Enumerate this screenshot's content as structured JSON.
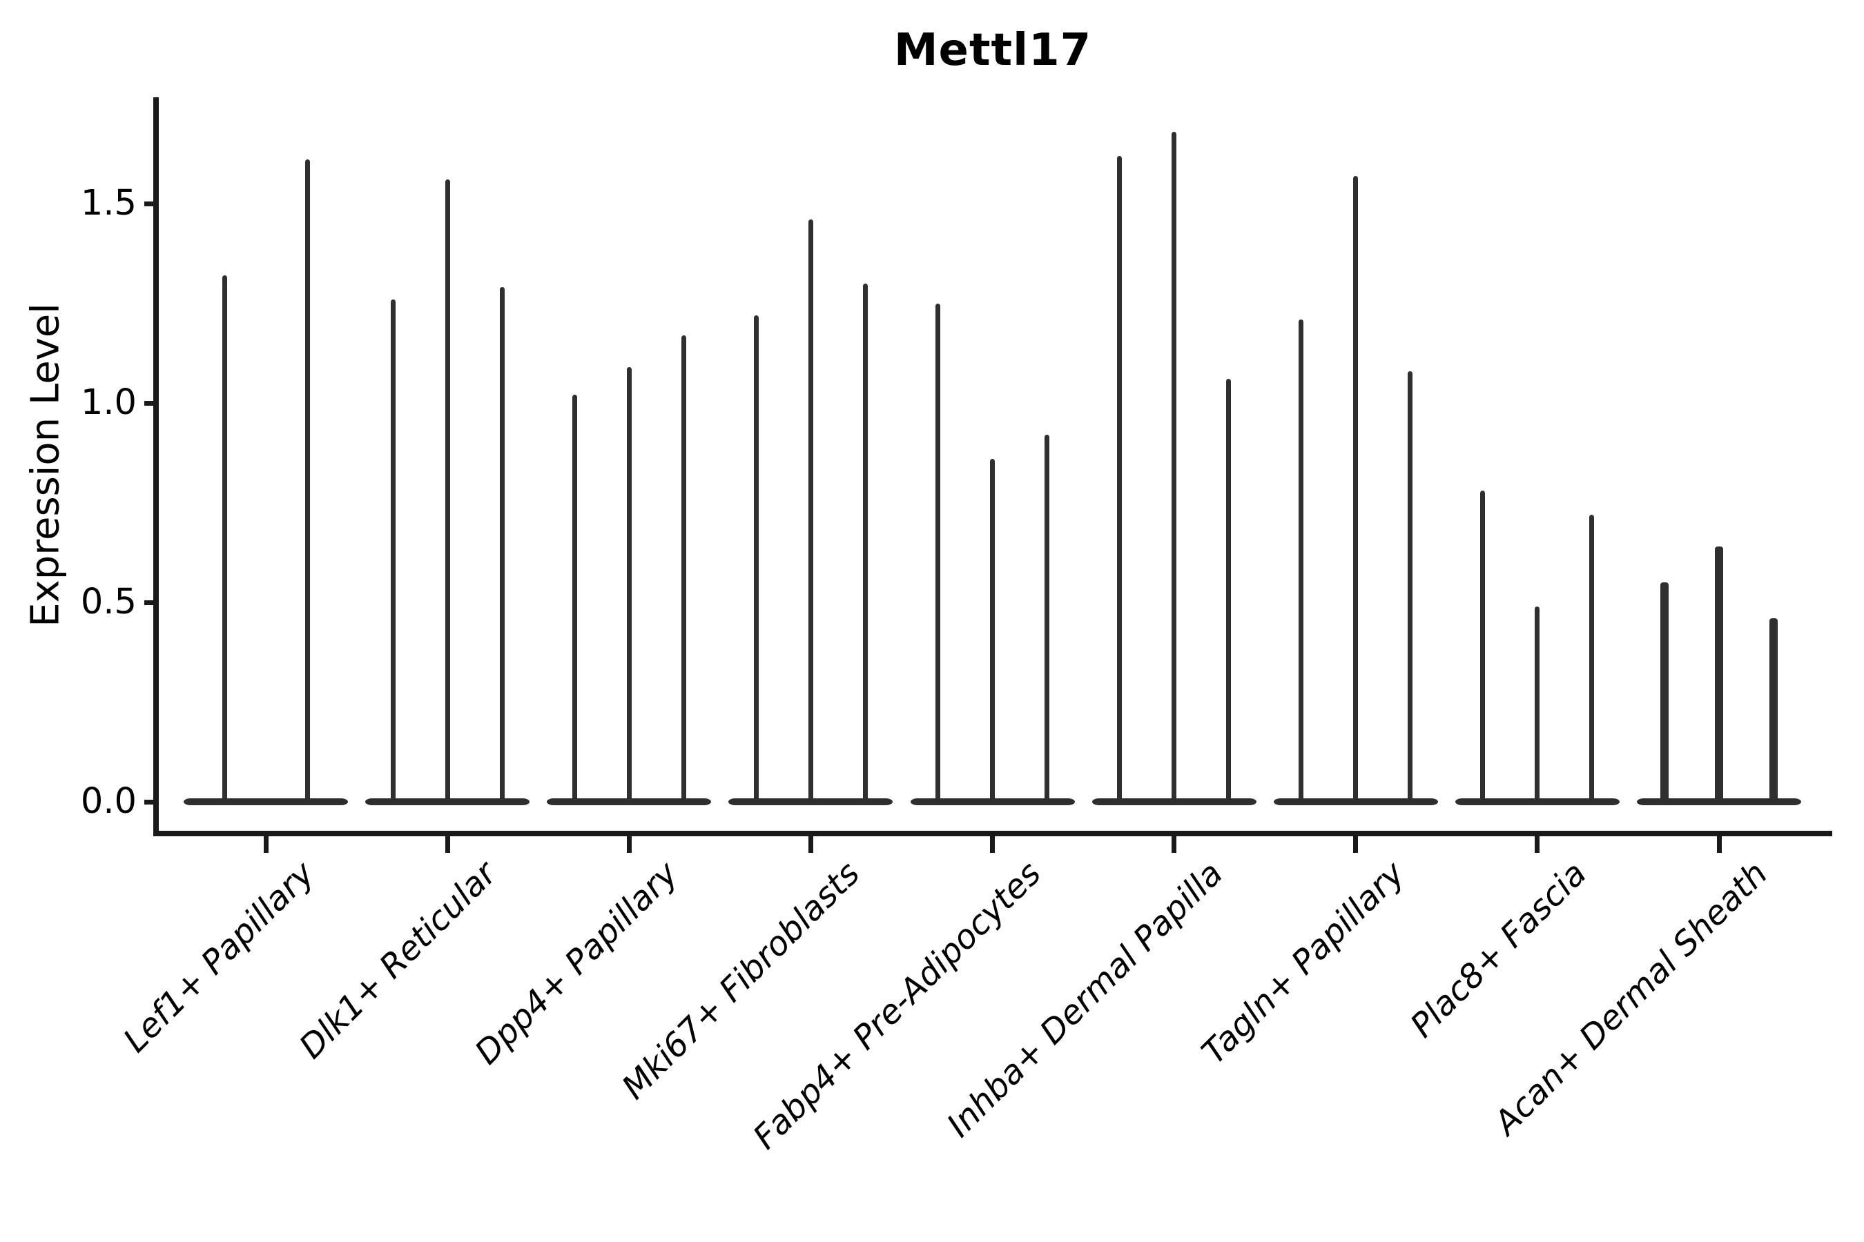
{
  "chart_data": {
    "type": "violin",
    "title": "Mettl17",
    "ylabel": "Expression Level",
    "xlabel": "",
    "ytick_labels": [
      "0.0",
      "0.5",
      "1.0",
      "1.5"
    ],
    "ytick_values": [
      0.0,
      0.5,
      1.0,
      1.5
    ],
    "ylim": [
      -0.08,
      1.77
    ],
    "grid": false,
    "legend": "none",
    "violin_shape_note": "each violin is a flat dense base at 0 with a thin vertical spike reaching the max expression value",
    "colors": {
      "violin": "#2e2e2e",
      "axis": "#1a1a1a",
      "text": "#000000",
      "background": "#ffffff"
    },
    "categories": [
      "Lef1+ Papillary",
      "Dlk1+ Reticular",
      "Dpp4+ Papillary",
      "Mki67+ Fibroblasts",
      "Fabp4+ Pre-Adipocytes",
      "Inhba+ Dermal Papilla",
      "Tagln+ Papillary",
      "Plac8+ Fascia",
      "Acan+ Dermal Sheath"
    ],
    "groups": [
      {
        "category": "Lef1+ Papillary",
        "violin_max_values": [
          1.32,
          1.61
        ]
      },
      {
        "category": "Dlk1+ Reticular",
        "violin_max_values": [
          1.26,
          1.56,
          1.29
        ]
      },
      {
        "category": "Dpp4+ Papillary",
        "violin_max_values": [
          1.02,
          1.09,
          1.17
        ]
      },
      {
        "category": "Mki67+ Fibroblasts",
        "violin_max_values": [
          1.22,
          1.46,
          1.3
        ]
      },
      {
        "category": "Fabp4+ Pre-Adipocytes",
        "violin_max_values": [
          1.25,
          0.86,
          0.92
        ]
      },
      {
        "category": "Inhba+ Dermal Papilla",
        "violin_max_values": [
          1.62,
          1.68,
          1.06
        ]
      },
      {
        "category": "Tagln+ Papillary",
        "violin_max_values": [
          1.21,
          1.57,
          1.08
        ]
      },
      {
        "category": "Plac8+ Fascia",
        "violin_max_values": [
          0.78,
          0.49,
          0.72
        ]
      },
      {
        "category": "Acan+ Dermal Sheath",
        "violin_max_values": [
          0.55,
          0.64,
          0.46
        ]
      }
    ]
  }
}
